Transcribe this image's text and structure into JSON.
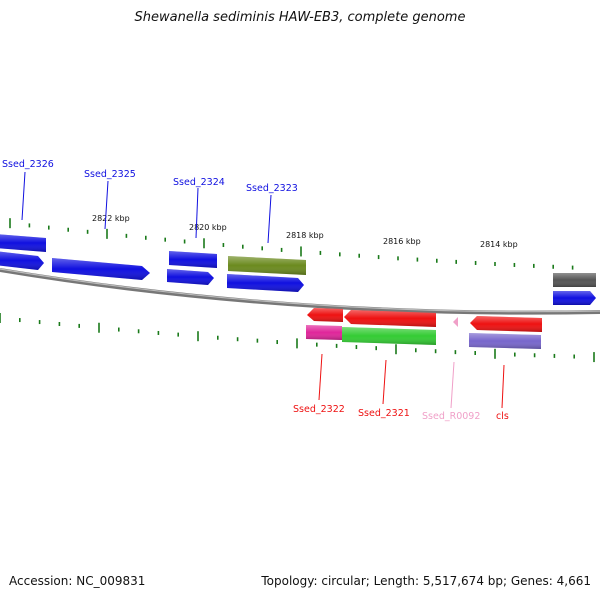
{
  "title": "Shewanella sediminis HAW-EB3, complete genome",
  "footer": {
    "accession": "Accession: NC_009831",
    "summary": "Topology: circular; Length: 5,517,674 bp; Genes: 4,661"
  },
  "scale_labels": [
    "2822 kbp",
    "2820 kbp",
    "2818 kbp",
    "2816 kbp",
    "2814 kbp"
  ],
  "gene_labels_top": [
    "Ssed_2326",
    "Ssed_2325",
    "Ssed_2324",
    "Ssed_2323"
  ],
  "gene_labels_bottom": [
    "Ssed_2322",
    "Ssed_2321",
    "Ssed_R0092",
    "cls"
  ],
  "colors": {
    "blue": "#1010e0",
    "olive": "#6b8a1e",
    "red": "#ee1111",
    "magenta": "#e0259a",
    "green": "#33cc33",
    "pink": "#f0a0c8",
    "purple": "#7766cc",
    "gray": "#555555",
    "tick": "#1a7a1a",
    "backbone": "#8a8a8a"
  }
}
